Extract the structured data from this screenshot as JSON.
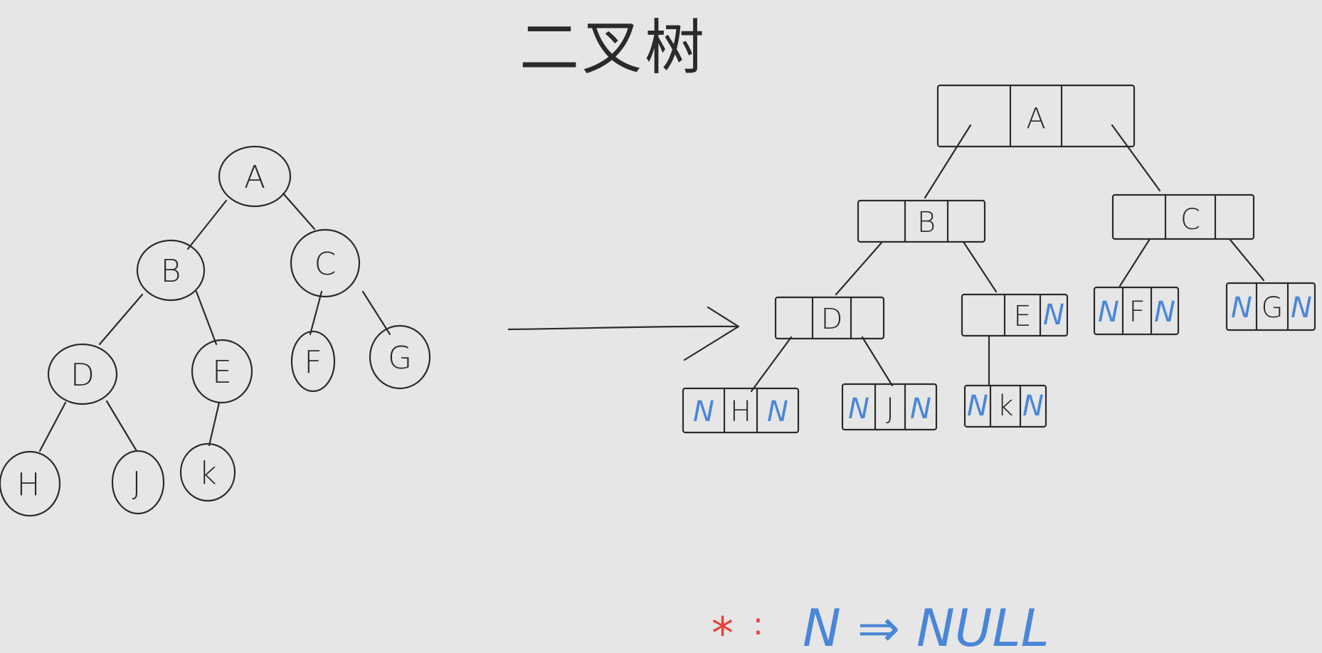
{
  "title": "二叉树",
  "left_tree": {
    "nodes": [
      {
        "id": "A",
        "label": "A"
      },
      {
        "id": "B",
        "label": "B"
      },
      {
        "id": "C",
        "label": "C"
      },
      {
        "id": "D",
        "label": "D"
      },
      {
        "id": "E",
        "label": "E"
      },
      {
        "id": "F",
        "label": "F"
      },
      {
        "id": "G",
        "label": "G"
      },
      {
        "id": "H",
        "label": "H"
      },
      {
        "id": "J",
        "label": "J"
      },
      {
        "id": "K",
        "label": "k"
      }
    ]
  },
  "right_tree": {
    "nodes": [
      {
        "id": "A",
        "left": "",
        "data": "A",
        "right": ""
      },
      {
        "id": "B",
        "left": "",
        "data": "B",
        "right": ""
      },
      {
        "id": "C",
        "left": "",
        "data": "C",
        "right": ""
      },
      {
        "id": "D",
        "left": "",
        "data": "D",
        "right": ""
      },
      {
        "id": "E",
        "left": "",
        "data": "E",
        "right": "N"
      },
      {
        "id": "F",
        "left": "N",
        "data": "F",
        "right": "N"
      },
      {
        "id": "G",
        "left": "N",
        "data": "G",
        "right": "N"
      },
      {
        "id": "H",
        "left": "N",
        "data": "H",
        "right": "N"
      },
      {
        "id": "J",
        "left": "N",
        "data": "J",
        "right": "N"
      },
      {
        "id": "K",
        "left": "N",
        "data": "k",
        "right": "N"
      }
    ]
  },
  "legend": {
    "symbol": "*",
    "colon": ":",
    "text": "N ⇒ NULL"
  },
  "colors": {
    "ink": "#2b2b2b",
    "null_marker": "#4a86d8",
    "legend_symbol": "#e8403a",
    "background": "#e6e6e6"
  }
}
